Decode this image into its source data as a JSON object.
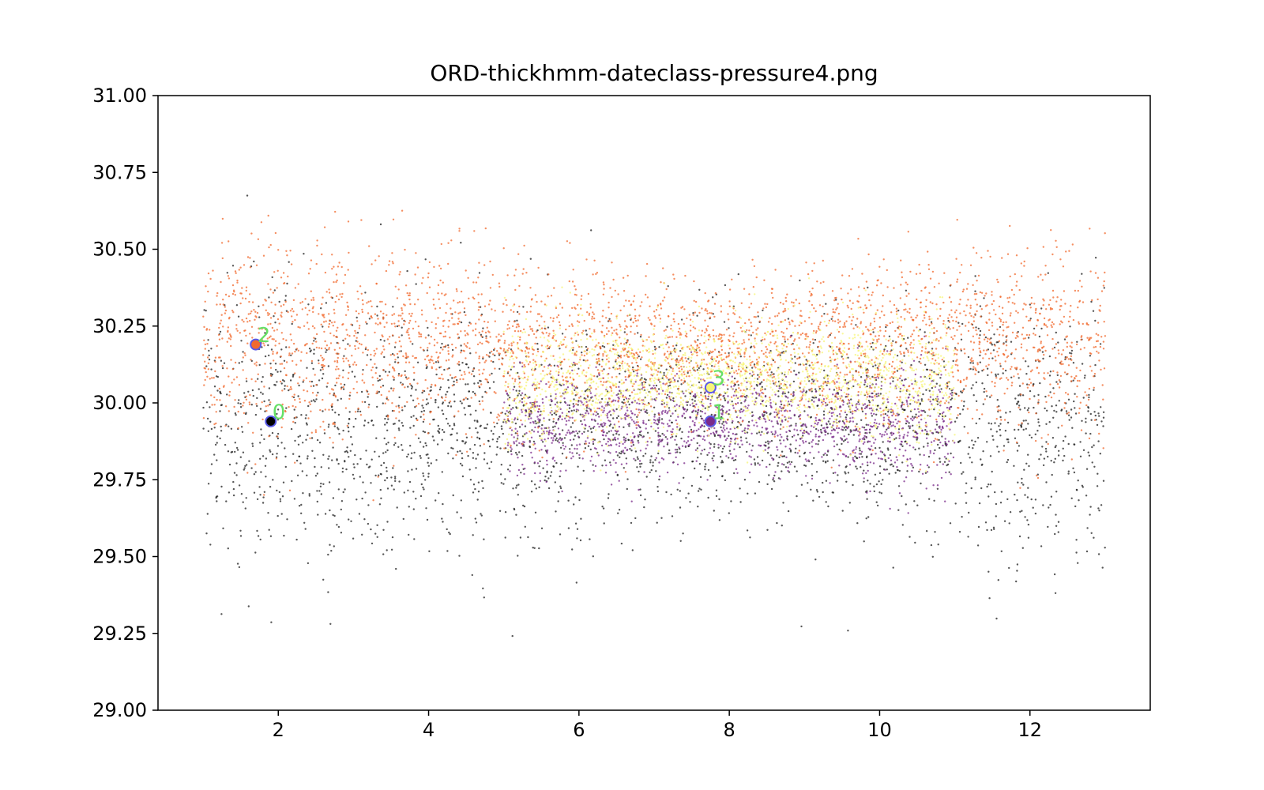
{
  "chart_data": {
    "type": "scatter",
    "title": "ORD-thickhmm-dateclass-pressure4.png",
    "xlabel": "",
    "ylabel": "",
    "xlim": [
      0.4,
      13.6
    ],
    "ylim": [
      29.0,
      31.0
    ],
    "x_ticks": [
      2,
      4,
      6,
      8,
      10,
      12
    ],
    "x_tick_labels": [
      "2",
      "4",
      "6",
      "8",
      "10",
      "12"
    ],
    "y_ticks": [
      29.0,
      29.25,
      29.5,
      29.75,
      30.0,
      30.25,
      30.5,
      30.75,
      31.0
    ],
    "y_tick_labels": [
      "29.00",
      "29.25",
      "29.50",
      "29.75",
      "30.00",
      "30.25",
      "30.50",
      "30.75",
      "31.00"
    ],
    "grid": false,
    "legend": "none",
    "series": [
      {
        "color": "#1f1f1f",
        "x_range": [
          1.0,
          13.0
        ],
        "winter_mean": 29.92,
        "summer_mean": 29.95,
        "spread": 0.22,
        "weight": 0.3
      },
      {
        "color": "#7a2a8a",
        "x_range": [
          5.0,
          11.0
        ],
        "winter_mean": 29.9,
        "summer_mean": 29.94,
        "spread": 0.11,
        "weight": 0.15
      },
      {
        "color": "#f26a2e",
        "x_range": [
          1.0,
          13.0
        ],
        "winter_mean": 30.2,
        "summer_mean": 30.18,
        "spread": 0.16,
        "weight": 0.35
      },
      {
        "color": "#f7f57a",
        "x_range": [
          5.0,
          11.0
        ],
        "winter_mean": 30.05,
        "summer_mean": 30.08,
        "spread": 0.12,
        "weight": 0.2
      }
    ],
    "centers": [
      {
        "label": "0",
        "x": 1.9,
        "y": 29.94,
        "fill": "#000000"
      },
      {
        "label": "1",
        "x": 7.75,
        "y": 29.94,
        "fill": "#7a2a8a"
      },
      {
        "label": "2",
        "x": 1.7,
        "y": 30.19,
        "fill": "#f26a2e"
      },
      {
        "label": "3",
        "x": 7.75,
        "y": 30.05,
        "fill": "#f7f57a"
      }
    ],
    "center_ring_color": "#5a5ae8",
    "center_label_color": "#66e066"
  }
}
